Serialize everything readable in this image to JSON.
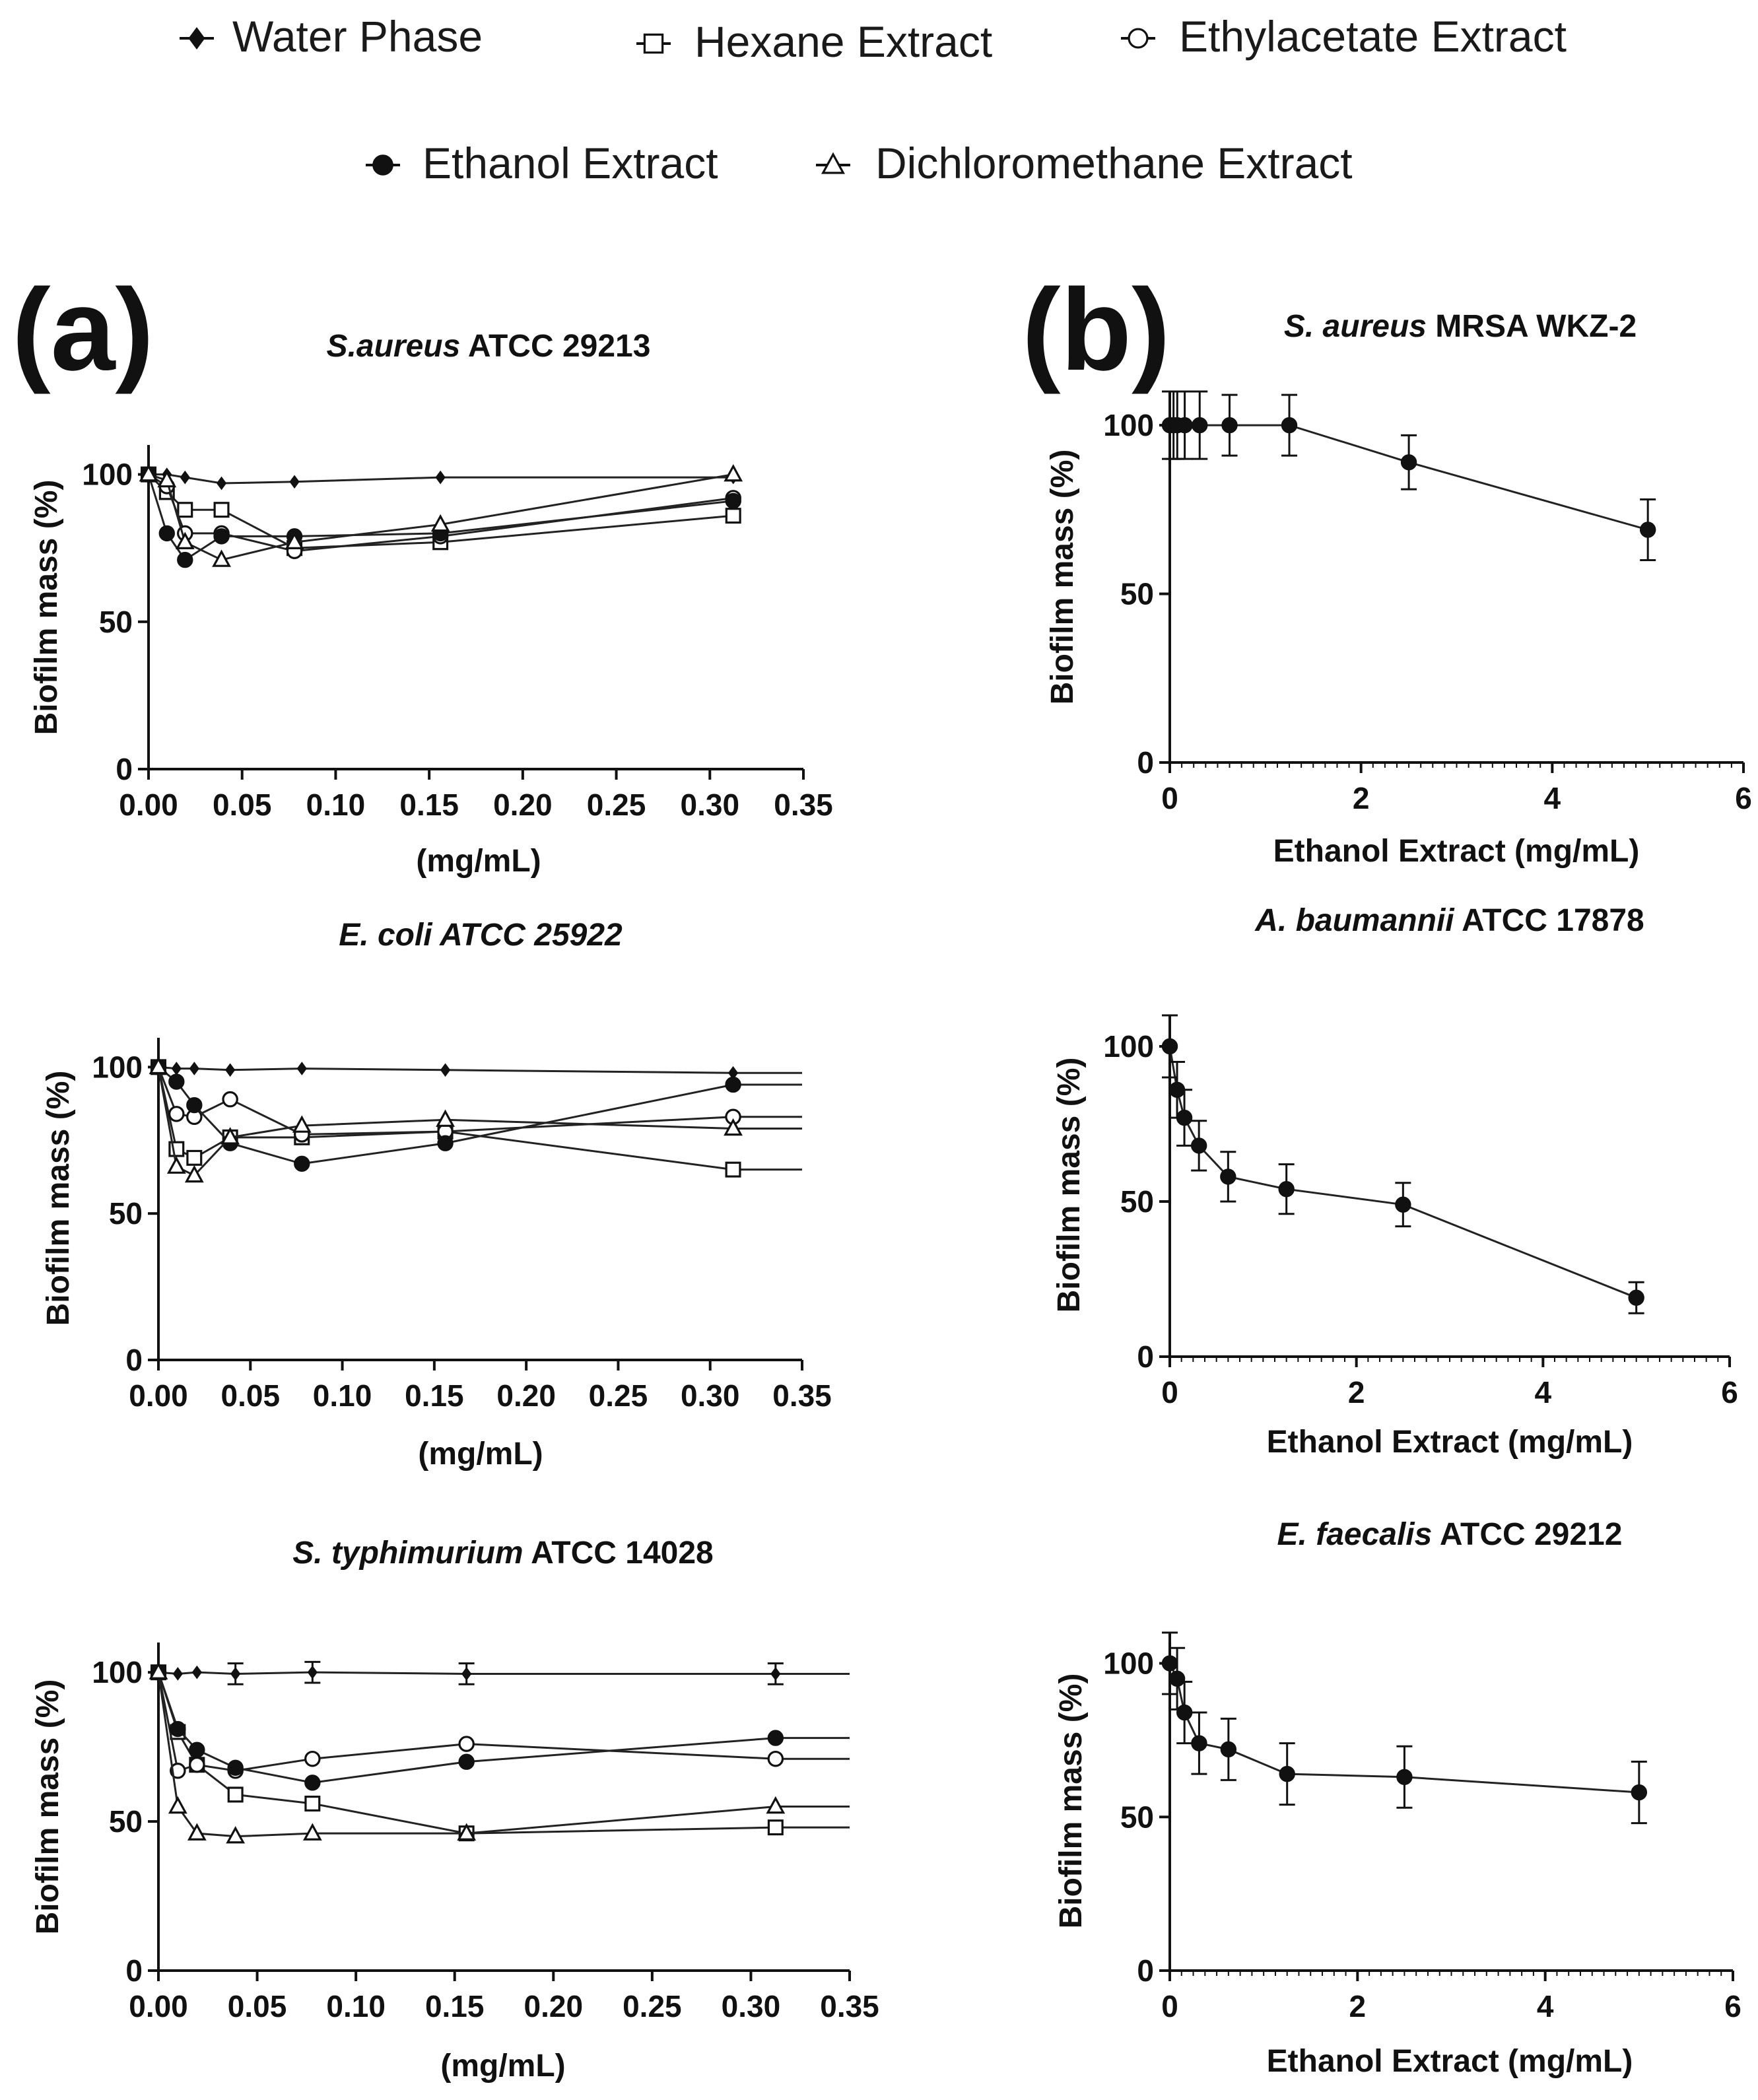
{
  "legend": [
    {
      "label": "Water Phase",
      "marker": "diamond-filled"
    },
    {
      "label": "Hexane Extract",
      "marker": "square-open"
    },
    {
      "label": "Ethylacetate Extract",
      "marker": "circle-open"
    },
    {
      "label": "Ethanol Extract",
      "marker": "circle-filled"
    },
    {
      "label": "Dichloromethane Extract",
      "marker": "triangle-open"
    }
  ],
  "panel_labels": {
    "a": "(a)",
    "b": "(b)"
  },
  "chart_data": [
    {
      "type": "line",
      "panel": "a",
      "title_italic": "S.aureus",
      "title_rest": " ATCC 29213",
      "xlabel": "(mg/mL)",
      "ylabel": "Biofilm mass (%)",
      "xlim": [
        0,
        0.35
      ],
      "ylim": [
        0,
        110
      ],
      "xticks": [
        0,
        0.05,
        0.1,
        0.15,
        0.2,
        0.25,
        0.3,
        0.35
      ],
      "xtick_labels": [
        "0.00",
        "0.05",
        "0.10",
        "0.15",
        "0.20",
        "0.25",
        "0.30",
        "0.35"
      ],
      "yticks": [
        0,
        50,
        100
      ],
      "ytick_labels": [
        "0",
        "50",
        "100"
      ],
      "extend_to_xmax": false,
      "series": [
        {
          "name": "Water Phase",
          "marker": "diamond-filled",
          "x": [
            0,
            0.0098,
            0.0195,
            0.039,
            0.078,
            0.156,
            0.3125
          ],
          "y": [
            100,
            100,
            99,
            97,
            97.5,
            99,
            99
          ]
        },
        {
          "name": "Hexane Extract",
          "marker": "square-open",
          "x": [
            0,
            0.0098,
            0.0195,
            0.039,
            0.078,
            0.156,
            0.3125
          ],
          "y": [
            100,
            94,
            88,
            88,
            75,
            77,
            86
          ]
        },
        {
          "name": "Ethylacetate Extract",
          "marker": "circle-open",
          "x": [
            0,
            0.0098,
            0.0195,
            0.039,
            0.078,
            0.156,
            0.3125
          ],
          "y": [
            100,
            96,
            80,
            80,
            74,
            79,
            92
          ]
        },
        {
          "name": "Ethanol Extract",
          "marker": "circle-filled",
          "x": [
            0,
            0.0098,
            0.0195,
            0.039,
            0.078,
            0.156,
            0.3125
          ],
          "y": [
            100,
            80,
            71,
            79,
            79,
            80,
            91
          ]
        },
        {
          "name": "Dichloromethane Extract",
          "marker": "triangle-open",
          "x": [
            0,
            0.0098,
            0.0195,
            0.039,
            0.078,
            0.156,
            0.3125
          ],
          "y": [
            100,
            98,
            77,
            71,
            77,
            83,
            100
          ]
        }
      ]
    },
    {
      "type": "line",
      "panel": "a",
      "title_italic": "E. coli ATCC 25922",
      "title_rest": "",
      "xlabel": "(mg/mL)",
      "ylabel": "Biofilm mass (%)",
      "xlim": [
        0,
        0.35
      ],
      "ylim": [
        0,
        110
      ],
      "xticks": [
        0,
        0.05,
        0.1,
        0.15,
        0.2,
        0.25,
        0.3,
        0.35
      ],
      "xtick_labels": [
        "0.00",
        "0.05",
        "0.10",
        "0.15",
        "0.20",
        "0.25",
        "0.30",
        "0.35"
      ],
      "yticks": [
        0,
        50,
        100
      ],
      "ytick_labels": [
        "0",
        "50",
        "100"
      ],
      "extend_to_xmax": true,
      "series": [
        {
          "name": "Water Phase",
          "marker": "diamond-filled",
          "x": [
            0,
            0.0098,
            0.0195,
            0.039,
            0.078,
            0.156,
            0.3125
          ],
          "y": [
            100,
            99.5,
            99.5,
            99,
            99.5,
            99,
            98
          ]
        },
        {
          "name": "Hexane Extract",
          "marker": "square-open",
          "x": [
            0,
            0.0098,
            0.0195,
            0.039,
            0.078,
            0.156,
            0.3125
          ],
          "y": [
            100,
            72,
            69,
            76,
            76,
            78,
            65
          ]
        },
        {
          "name": "Ethylacetate Extract",
          "marker": "circle-open",
          "x": [
            0,
            0.0098,
            0.0195,
            0.039,
            0.078,
            0.156,
            0.3125
          ],
          "y": [
            100,
            84,
            83,
            89,
            77,
            78,
            83
          ]
        },
        {
          "name": "Ethanol Extract",
          "marker": "circle-filled",
          "x": [
            0,
            0.0098,
            0.0195,
            0.039,
            0.078,
            0.156,
            0.3125
          ],
          "y": [
            100,
            95,
            87,
            74,
            67,
            74,
            94
          ]
        },
        {
          "name": "Dichloromethane Extract",
          "marker": "triangle-open",
          "x": [
            0,
            0.0098,
            0.0195,
            0.039,
            0.078,
            0.156,
            0.3125
          ],
          "y": [
            100,
            66,
            63,
            76,
            80,
            82,
            79
          ]
        }
      ]
    },
    {
      "type": "line",
      "panel": "a",
      "title_italic": "S. typhimurium",
      "title_rest": " ATCC 14028",
      "xlabel": "(mg/mL)",
      "ylabel": "Biofilm mass (%)",
      "xlim": [
        0,
        0.35
      ],
      "ylim": [
        0,
        110
      ],
      "xticks": [
        0,
        0.05,
        0.1,
        0.15,
        0.2,
        0.25,
        0.3,
        0.35
      ],
      "xtick_labels": [
        "0.00",
        "0.05",
        "0.10",
        "0.15",
        "0.20",
        "0.25",
        "0.30",
        "0.35"
      ],
      "yticks": [
        0,
        50,
        100
      ],
      "ytick_labels": [
        "0",
        "50",
        "100"
      ],
      "extend_to_xmax": true,
      "series": [
        {
          "name": "Water Phase",
          "marker": "diamond-filled",
          "x": [
            0,
            0.0098,
            0.0195,
            0.039,
            0.078,
            0.156,
            0.3125
          ],
          "y": [
            100,
            99.5,
            100,
            99.5,
            100,
            99.5,
            99.5
          ],
          "err": [
            0,
            0,
            0,
            3.5,
            3.5,
            3.5,
            3.5
          ]
        },
        {
          "name": "Hexane Extract",
          "marker": "square-open",
          "x": [
            0,
            0.0098,
            0.0195,
            0.039,
            0.078,
            0.156,
            0.3125
          ],
          "y": [
            100,
            80,
            69,
            59,
            56,
            46,
            48
          ]
        },
        {
          "name": "Ethylacetate Extract",
          "marker": "circle-open",
          "x": [
            0,
            0.0098,
            0.0195,
            0.039,
            0.078,
            0.156,
            0.3125
          ],
          "y": [
            100,
            67,
            69,
            67,
            71,
            76,
            71
          ]
        },
        {
          "name": "Ethanol Extract",
          "marker": "circle-filled",
          "x": [
            0,
            0.0098,
            0.0195,
            0.039,
            0.078,
            0.156,
            0.3125
          ],
          "y": [
            100,
            81,
            74,
            68,
            63,
            70,
            78
          ]
        },
        {
          "name": "Dichloromethane Extract",
          "marker": "triangle-open",
          "x": [
            0,
            0.0098,
            0.0195,
            0.039,
            0.078,
            0.156,
            0.3125
          ],
          "y": [
            100,
            55,
            46,
            45,
            46,
            46,
            55
          ]
        }
      ]
    },
    {
      "type": "line",
      "panel": "b",
      "title_italic": "S. aureus",
      "title_rest": " MRSA WKZ-2",
      "xlabel": "Ethanol Extract (mg/mL)",
      "ylabel": "Biofilm mass (%)",
      "xlim": [
        0,
        6
      ],
      "ylim": [
        0,
        110
      ],
      "xticks": [
        0,
        2,
        4,
        6
      ],
      "xtick_labels": [
        "0",
        "2",
        "4",
        "6"
      ],
      "yticks": [
        0,
        50,
        100
      ],
      "ytick_labels": [
        "0",
        "50",
        "100"
      ],
      "extend_to_xmax": false,
      "series": [
        {
          "name": "Ethanol Extract",
          "marker": "circle-filled",
          "x": [
            0,
            0.039,
            0.078,
            0.156,
            0.3125,
            0.625,
            1.25,
            2.5,
            5
          ],
          "y": [
            100,
            100,
            100,
            100,
            100,
            100,
            100,
            89,
            69
          ],
          "err": [
            10,
            10,
            10,
            10,
            10,
            9,
            9,
            8,
            9
          ]
        }
      ]
    },
    {
      "type": "line",
      "panel": "b",
      "title_italic": "A. baumannii",
      "title_rest": " ATCC 17878",
      "xlabel": "Ethanol Extract (mg/mL)",
      "ylabel": "Biofilm mass (%)",
      "xlim": [
        0,
        6
      ],
      "ylim": [
        0,
        110
      ],
      "xticks": [
        0,
        2,
        4,
        6
      ],
      "xtick_labels": [
        "0",
        "2",
        "4",
        "6"
      ],
      "yticks": [
        0,
        50,
        100
      ],
      "ytick_labels": [
        "0",
        "50",
        "100"
      ],
      "extend_to_xmax": false,
      "series": [
        {
          "name": "Ethanol Extract",
          "marker": "circle-filled",
          "x": [
            0,
            0.078,
            0.156,
            0.3125,
            0.625,
            1.25,
            2.5,
            5
          ],
          "y": [
            100,
            86,
            77,
            68,
            58,
            54,
            49,
            19
          ],
          "err": [
            10,
            9,
            9,
            8,
            8,
            8,
            7,
            5
          ]
        }
      ]
    },
    {
      "type": "line",
      "panel": "b",
      "title_italic": "E. faecalis",
      "title_rest": " ATCC 29212",
      "xlabel": "Ethanol Extract (mg/mL)",
      "ylabel": "Biofilm mass (%)",
      "xlim": [
        0,
        6
      ],
      "ylim": [
        0,
        110
      ],
      "xticks": [
        0,
        2,
        4,
        6
      ],
      "xtick_labels": [
        "0",
        "2",
        "4",
        "6"
      ],
      "yticks": [
        0,
        50,
        100
      ],
      "ytick_labels": [
        "0",
        "50",
        "100"
      ],
      "extend_to_xmax": false,
      "series": [
        {
          "name": "Ethanol Extract",
          "marker": "circle-filled",
          "x": [
            0,
            0.078,
            0.156,
            0.3125,
            0.625,
            1.25,
            2.5,
            5
          ],
          "y": [
            100,
            95,
            84,
            74,
            72,
            64,
            63,
            58
          ],
          "err": [
            10,
            10,
            10,
            10,
            10,
            10,
            10,
            10
          ]
        }
      ]
    }
  ]
}
